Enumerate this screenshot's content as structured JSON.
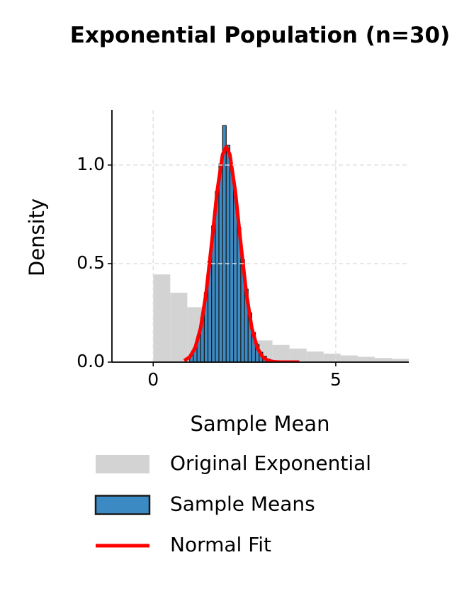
{
  "chart_data": {
    "type": "histogram",
    "title": "Exponential Population (n=30)",
    "xlabel": "Sample Mean",
    "ylabel": "Density",
    "xlim": [
      -1.13,
      7.0
    ],
    "ylim": [
      0,
      1.28
    ],
    "xticks": [
      0,
      5
    ],
    "yticks": [
      {
        "value": 0,
        "label": "0.0"
      },
      {
        "value": 0.5,
        "label": "0.5"
      },
      {
        "value": 1,
        "label": "1.0"
      }
    ],
    "grid": true,
    "legend": "below",
    "series": [
      {
        "name": "Original Exponential",
        "type": "histogram",
        "color": "#d3d3d3",
        "bins": [
          0,
          0.467,
          0.933,
          1.4,
          1.867,
          2.333,
          2.8,
          3.267,
          3.733,
          4.2,
          4.667,
          5.133,
          5.6,
          6.067,
          6.533,
          7.0
        ],
        "values": [
          0.445,
          0.352,
          0.279,
          0.221,
          0.175,
          0.139,
          0.11,
          0.087,
          0.069,
          0.054,
          0.043,
          0.034,
          0.027,
          0.021,
          0.017
        ]
      },
      {
        "name": "Sample Means",
        "type": "histogram",
        "color": "#3b8ac4",
        "edgecolor": "#1a1a1a",
        "bins": [
          1.0,
          1.1,
          1.2,
          1.3,
          1.4,
          1.5,
          1.6,
          1.7,
          1.8,
          1.9,
          2.0,
          2.1,
          2.2,
          2.3,
          2.4,
          2.5,
          2.6,
          2.7,
          2.8,
          2.9,
          3.0,
          3.1,
          3.2,
          3.3,
          3.4
        ],
        "values": [
          0.037,
          0.073,
          0.133,
          0.224,
          0.352,
          0.512,
          0.691,
          0.865,
          1.005,
          1.2,
          1.1,
          0.97,
          0.84,
          0.68,
          0.52,
          0.37,
          0.25,
          0.15,
          0.09,
          0.05,
          0.03,
          0.015,
          0.008,
          0.004
        ]
      },
      {
        "name": "Normal Fit",
        "type": "line",
        "color": "#ff0000",
        "x": [
          0.85,
          1.0,
          1.15,
          1.3,
          1.45,
          1.6,
          1.75,
          1.9,
          2.0,
          2.1,
          2.25,
          2.4,
          2.55,
          2.7,
          2.85,
          3.0,
          3.15,
          3.3,
          3.45,
          3.6,
          3.75,
          4.0
        ],
        "values": [
          0.0077,
          0.0257,
          0.0728,
          0.174,
          0.352,
          0.6,
          0.865,
          1.053,
          1.093,
          1.053,
          0.865,
          0.6,
          0.352,
          0.174,
          0.0728,
          0.0257,
          0.0077,
          0.0019,
          0.0004,
          0.0001,
          0,
          0
        ]
      }
    ]
  }
}
